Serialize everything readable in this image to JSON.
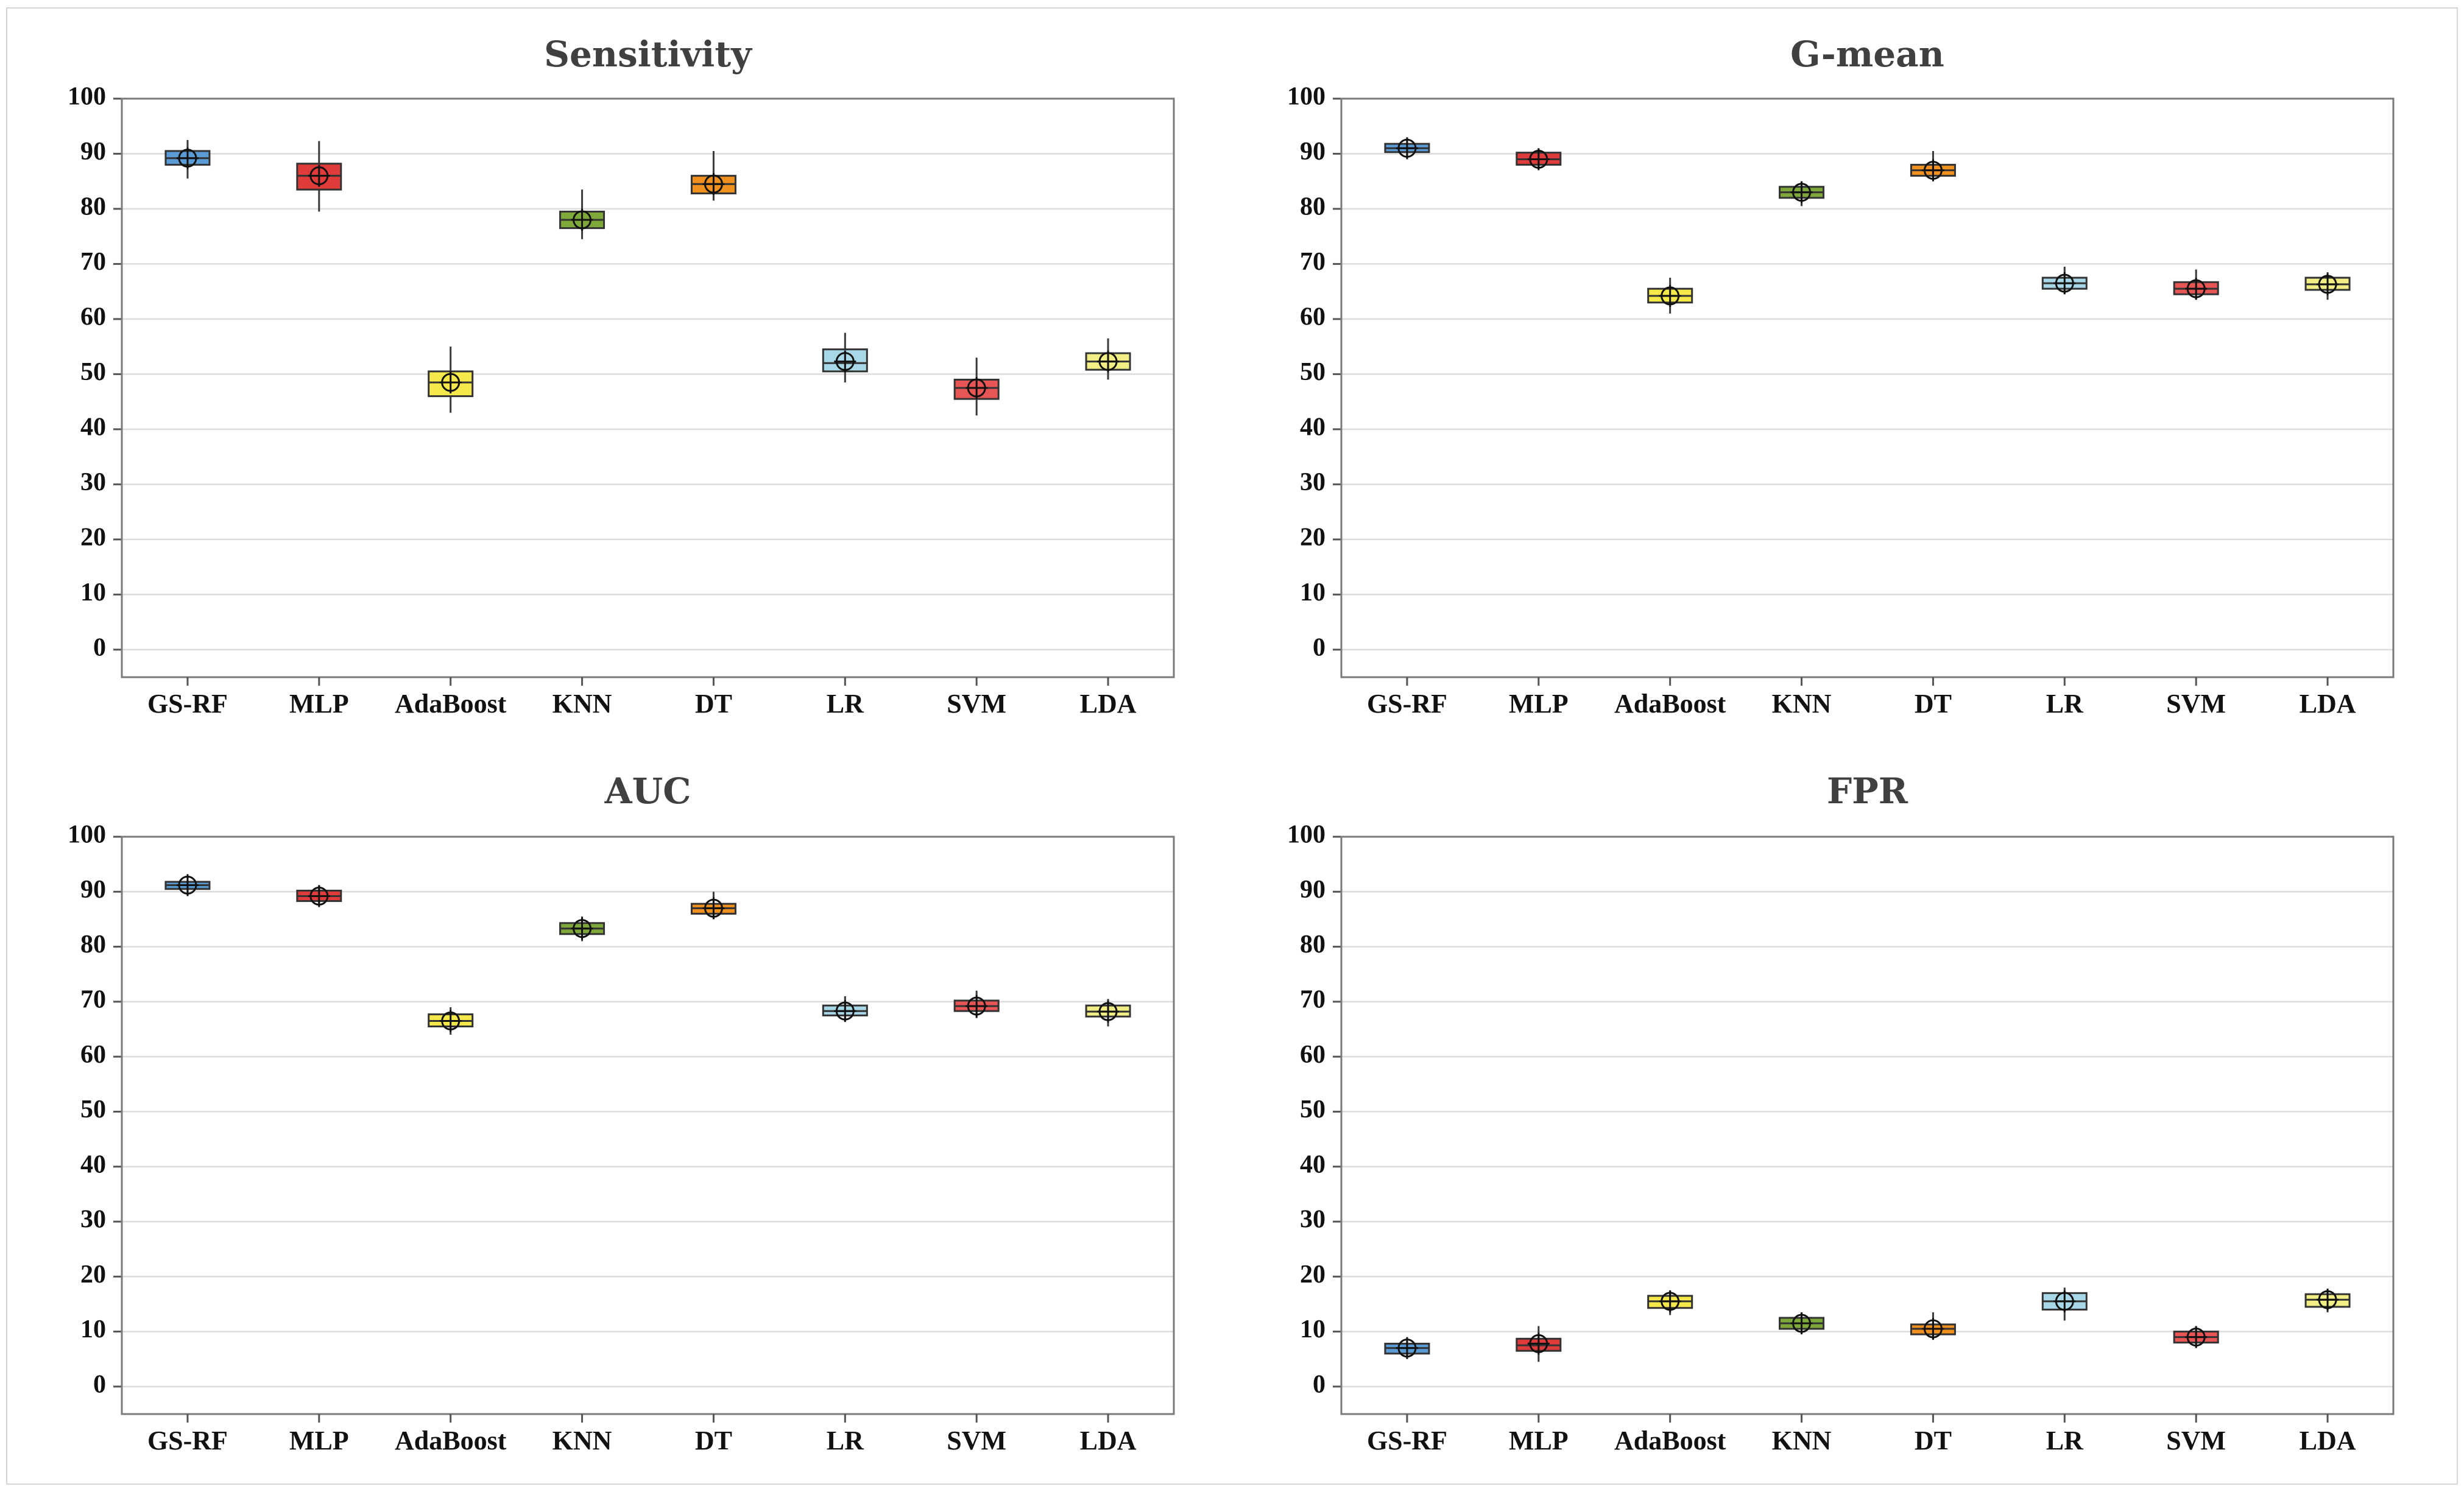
{
  "chart_data": [
    {
      "type": "boxplot",
      "title": "Sensitivity",
      "categories": [
        "GS-RF",
        "MLP",
        "AdaBoost",
        "KNN",
        "DT",
        "LR",
        "SVM",
        "LDA"
      ],
      "ylim": [
        -5,
        100
      ],
      "yticks": [
        0,
        10,
        20,
        30,
        40,
        50,
        60,
        70,
        80,
        90,
        100
      ],
      "grid": true,
      "boxes": [
        {
          "min": 85.5,
          "q1": 88.0,
          "median": 89.2,
          "q3": 90.5,
          "max": 92.5,
          "mean": 89.2
        },
        {
          "min": 79.5,
          "q1": 83.5,
          "median": 86.0,
          "q3": 88.2,
          "max": 92.3,
          "mean": 86.0
        },
        {
          "min": 43.0,
          "q1": 46.0,
          "median": 48.5,
          "q3": 50.5,
          "max": 55.0,
          "mean": 48.5
        },
        {
          "min": 74.5,
          "q1": 76.5,
          "median": 78.0,
          "q3": 79.5,
          "max": 83.5,
          "mean": 78.0
        },
        {
          "min": 81.5,
          "q1": 82.8,
          "median": 84.5,
          "q3": 86.0,
          "max": 90.5,
          "mean": 84.5
        },
        {
          "min": 48.5,
          "q1": 50.5,
          "median": 52.0,
          "q3": 54.5,
          "max": 57.5,
          "mean": 52.3
        },
        {
          "min": 42.5,
          "q1": 45.5,
          "median": 47.5,
          "q3": 49.0,
          "max": 53.0,
          "mean": 47.5
        },
        {
          "min": 49.0,
          "q1": 50.8,
          "median": 52.3,
          "q3": 53.8,
          "max": 56.5,
          "mean": 52.3
        }
      ]
    },
    {
      "type": "boxplot",
      "title": "G-mean",
      "categories": [
        "GS-RF",
        "MLP",
        "AdaBoost",
        "KNN",
        "DT",
        "LR",
        "SVM",
        "LDA"
      ],
      "ylim": [
        -5,
        100
      ],
      "yticks": [
        0,
        10,
        20,
        30,
        40,
        50,
        60,
        70,
        80,
        90,
        100
      ],
      "grid": true,
      "boxes": [
        {
          "min": 89.5,
          "q1": 90.3,
          "median": 91.0,
          "q3": 91.8,
          "max": 92.5,
          "mean": 91.0
        },
        {
          "min": 87.5,
          "q1": 88.0,
          "median": 89.0,
          "q3": 90.2,
          "max": 91.0,
          "mean": 89.0
        },
        {
          "min": 61.0,
          "q1": 63.0,
          "median": 64.2,
          "q3": 65.5,
          "max": 67.5,
          "mean": 64.2
        },
        {
          "min": 80.5,
          "q1": 82.0,
          "median": 83.0,
          "q3": 84.0,
          "max": 85.0,
          "mean": 83.0
        },
        {
          "min": 85.0,
          "q1": 86.0,
          "median": 87.0,
          "q3": 88.0,
          "max": 90.5,
          "mean": 87.0
        },
        {
          "min": 64.5,
          "q1": 65.5,
          "median": 66.5,
          "q3": 67.5,
          "max": 69.5,
          "mean": 66.5
        },
        {
          "min": 63.5,
          "q1": 64.5,
          "median": 65.5,
          "q3": 66.7,
          "max": 69.0,
          "mean": 65.5
        },
        {
          "min": 63.5,
          "q1": 65.3,
          "median": 66.3,
          "q3": 67.5,
          "max": 68.5,
          "mean": 66.3
        }
      ]
    },
    {
      "type": "boxplot",
      "title": "AUC",
      "categories": [
        "GS-RF",
        "MLP",
        "AdaBoost",
        "KNN",
        "DT",
        "LR",
        "SVM",
        "LDA"
      ],
      "ylim": [
        -5,
        100
      ],
      "yticks": [
        0,
        10,
        20,
        30,
        40,
        50,
        60,
        70,
        80,
        90,
        100
      ],
      "grid": true,
      "boxes": [
        {
          "min": 89.8,
          "q1": 90.5,
          "median": 91.2,
          "q3": 91.8,
          "max": 92.5,
          "mean": 91.2
        },
        {
          "min": 87.5,
          "q1": 88.3,
          "median": 89.2,
          "q3": 90.2,
          "max": 91.2,
          "mean": 89.2
        },
        {
          "min": 64.0,
          "q1": 65.5,
          "median": 66.5,
          "q3": 67.7,
          "max": 69.0,
          "mean": 66.5
        },
        {
          "min": 81.0,
          "q1": 82.3,
          "median": 83.3,
          "q3": 84.3,
          "max": 85.5,
          "mean": 83.3
        },
        {
          "min": 85.0,
          "q1": 86.0,
          "median": 87.0,
          "q3": 87.8,
          "max": 90.0,
          "mean": 87.0
        },
        {
          "min": 66.5,
          "q1": 67.5,
          "median": 68.3,
          "q3": 69.3,
          "max": 71.0,
          "mean": 68.3
        },
        {
          "min": 67.0,
          "q1": 68.3,
          "median": 69.2,
          "q3": 70.2,
          "max": 72.0,
          "mean": 69.2
        },
        {
          "min": 65.5,
          "q1": 67.3,
          "median": 68.2,
          "q3": 69.3,
          "max": 70.5,
          "mean": 68.2
        }
      ]
    },
    {
      "type": "boxplot",
      "title": "FPR",
      "categories": [
        "GS-RF",
        "MLP",
        "AdaBoost",
        "KNN",
        "DT",
        "LR",
        "SVM",
        "LDA"
      ],
      "ylim": [
        -5,
        100
      ],
      "yticks": [
        0,
        10,
        20,
        30,
        40,
        50,
        60,
        70,
        80,
        90,
        100
      ],
      "grid": true,
      "boxes": [
        {
          "min": 5.5,
          "q1": 6.0,
          "median": 7.0,
          "q3": 7.8,
          "max": 8.5,
          "mean": 7.0
        },
        {
          "min": 4.5,
          "q1": 6.5,
          "median": 7.5,
          "q3": 8.7,
          "max": 11.0,
          "mean": 7.8
        },
        {
          "min": 13.0,
          "q1": 14.3,
          "median": 15.5,
          "q3": 16.5,
          "max": 17.5,
          "mean": 15.5
        },
        {
          "min": 9.5,
          "q1": 10.5,
          "median": 11.5,
          "q3": 12.5,
          "max": 13.5,
          "mean": 11.5
        },
        {
          "min": 8.5,
          "q1": 9.5,
          "median": 10.5,
          "q3": 11.3,
          "max": 13.5,
          "mean": 10.5
        },
        {
          "min": 12.0,
          "q1": 14.0,
          "median": 15.5,
          "q3": 17.0,
          "max": 18.0,
          "mean": 15.5
        },
        {
          "min": 7.5,
          "q1": 8.0,
          "median": 9.0,
          "q3": 10.0,
          "max": 11.0,
          "mean": 9.0
        },
        {
          "min": 13.5,
          "q1": 14.5,
          "median": 15.8,
          "q3": 16.8,
          "max": 17.8,
          "mean": 15.8
        }
      ]
    }
  ],
  "box_colors": [
    "#5B9BD5",
    "#E03B3B",
    "#F5E84A",
    "#7FA83A",
    "#F0901E",
    "#A8D8E8",
    "#E85555",
    "#F2EE86"
  ],
  "mean_marker": "circle-plus"
}
